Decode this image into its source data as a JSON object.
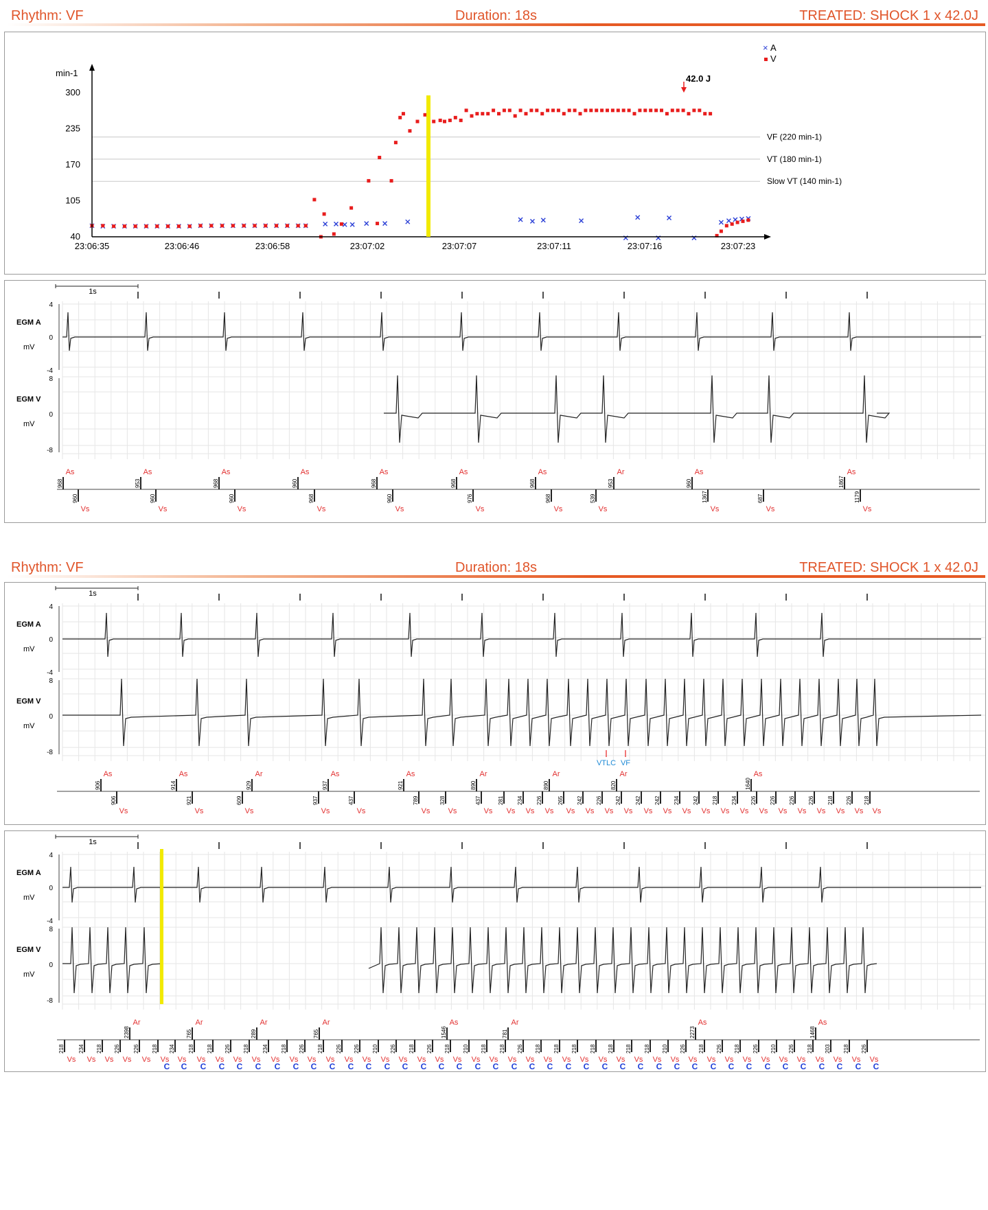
{
  "header": {
    "rhythm": "Rhythm: VF",
    "duration": "Duration: 18s",
    "treated": "TREATED: SHOCK 1 x 42.0J"
  },
  "colors": {
    "orange": "#e0552a",
    "atrial": "#2a3fd6",
    "ventricular": "#e81d1d",
    "marker": "#e23030",
    "cmark": "#1f3fd8",
    "highlight": "#f2ea00"
  },
  "trend": {
    "ylabel": "min-1",
    "ytick_labels": [
      "40",
      "105",
      "170",
      "235",
      "300"
    ],
    "xtick_labels": [
      "23:06:35",
      "23:06:46",
      "23:06:58",
      "23:07:02",
      "23:07:07",
      "23:07:11",
      "23:07:16",
      "23:07:23"
    ],
    "legend": {
      "a": "A",
      "v": "V"
    },
    "shock": "42.0 J",
    "zones": [
      "VF (220 min-1)",
      "VT (180 min-1)",
      "Slow VT (140 min-1)"
    ]
  },
  "chart_data": {
    "type": "scatter",
    "title": "",
    "ylabel": "min-1",
    "ylim": [
      40,
      300
    ],
    "yticks": [
      40,
      105,
      170,
      235,
      300
    ],
    "x_index": [
      0,
      60
    ],
    "thresholds": [
      220,
      180,
      140
    ],
    "series": [
      {
        "name": "A",
        "marker": "x",
        "points": [
          [
            0,
            60
          ],
          [
            1,
            59
          ],
          [
            2,
            59
          ],
          [
            3,
            59
          ],
          [
            4,
            59
          ],
          [
            5,
            59
          ],
          [
            6,
            59
          ],
          [
            7,
            59
          ],
          [
            8,
            59
          ],
          [
            9,
            59
          ],
          [
            10,
            60
          ],
          [
            11,
            60
          ],
          [
            12,
            60
          ],
          [
            13,
            60
          ],
          [
            14,
            60
          ],
          [
            15,
            60
          ],
          [
            16,
            60
          ],
          [
            17,
            60
          ],
          [
            18,
            60
          ],
          [
            19,
            60
          ],
          [
            19.7,
            60
          ],
          [
            21.5,
            63
          ],
          [
            22.5,
            63
          ],
          [
            23.3,
            62
          ],
          [
            24,
            62
          ],
          [
            25.3,
            64
          ],
          [
            27,
            64
          ],
          [
            29.1,
            67
          ],
          [
            39.5,
            71
          ],
          [
            40.6,
            68
          ],
          [
            41.6,
            70
          ],
          [
            45.1,
            69
          ],
          [
            49.2,
            38
          ],
          [
            50.3,
            75
          ],
          [
            52.2,
            38
          ],
          [
            53.2,
            74
          ],
          [
            55.5,
            38
          ],
          [
            58,
            66
          ],
          [
            58.7,
            69
          ],
          [
            59.3,
            71
          ],
          [
            59.9,
            72
          ],
          [
            60.5,
            73
          ]
        ]
      },
      {
        "name": "V",
        "marker": "square",
        "points": [
          [
            0,
            60
          ],
          [
            1,
            60
          ],
          [
            2,
            59
          ],
          [
            3,
            59
          ],
          [
            4,
            59
          ],
          [
            5,
            59
          ],
          [
            6,
            59
          ],
          [
            7,
            59
          ],
          [
            8,
            59
          ],
          [
            9,
            59
          ],
          [
            10,
            60
          ],
          [
            11,
            60
          ],
          [
            12,
            60
          ],
          [
            13,
            60
          ],
          [
            14,
            60
          ],
          [
            15,
            60
          ],
          [
            16,
            60
          ],
          [
            17,
            60
          ],
          [
            18,
            60
          ],
          [
            19,
            60
          ],
          [
            19.7,
            60
          ],
          [
            20.5,
            107
          ],
          [
            21.1,
            40
          ],
          [
            21.4,
            81
          ],
          [
            22.3,
            45
          ],
          [
            23,
            63
          ],
          [
            23.9,
            92
          ],
          [
            25.5,
            141
          ],
          [
            26.3,
            64
          ],
          [
            26.5,
            183
          ],
          [
            27.6,
            141
          ],
          [
            28,
            210
          ],
          [
            28.4,
            255
          ],
          [
            28.7,
            262
          ],
          [
            29.3,
            231
          ],
          [
            30,
            248
          ],
          [
            30.7,
            260
          ],
          [
            31.5,
            248
          ],
          [
            32.1,
            250
          ],
          [
            32.5,
            248
          ],
          [
            33,
            250
          ],
          [
            33.5,
            255
          ],
          [
            34,
            250
          ],
          [
            34.5,
            268
          ],
          [
            35,
            258
          ],
          [
            35.5,
            262
          ],
          [
            36,
            262
          ],
          [
            36.5,
            262
          ],
          [
            37,
            268
          ],
          [
            37.5,
            262
          ],
          [
            38,
            268
          ],
          [
            38.5,
            268
          ],
          [
            39,
            258
          ],
          [
            39.5,
            268
          ],
          [
            40,
            262
          ],
          [
            40.5,
            268
          ],
          [
            41,
            268
          ],
          [
            41.5,
            262
          ],
          [
            42,
            268
          ],
          [
            42.5,
            268
          ],
          [
            43,
            268
          ],
          [
            43.5,
            262
          ],
          [
            44,
            268
          ],
          [
            44.5,
            268
          ],
          [
            45,
            262
          ],
          [
            45.5,
            268
          ],
          [
            46,
            268
          ],
          [
            46.5,
            268
          ],
          [
            47,
            268
          ],
          [
            47.5,
            268
          ],
          [
            48,
            268
          ],
          [
            48.5,
            268
          ],
          [
            49,
            268
          ],
          [
            49.5,
            268
          ],
          [
            50,
            262
          ],
          [
            50.5,
            268
          ],
          [
            51,
            268
          ],
          [
            51.5,
            268
          ],
          [
            52,
            268
          ],
          [
            52.5,
            268
          ],
          [
            53,
            262
          ],
          [
            53.5,
            268
          ],
          [
            54,
            268
          ],
          [
            54.5,
            268
          ],
          [
            55,
            262
          ],
          [
            55.5,
            268
          ],
          [
            56,
            268
          ],
          [
            56.5,
            262
          ],
          [
            57,
            262
          ],
          [
            57.6,
            42
          ],
          [
            58,
            50
          ],
          [
            58.5,
            60
          ],
          [
            59,
            63
          ],
          [
            59.5,
            66
          ],
          [
            60,
            68
          ],
          [
            60.5,
            70
          ]
        ]
      }
    ],
    "annotations": [
      "42.0 J",
      "VF (220 min-1)",
      "VT (180 min-1)",
      "Slow VT (140 min-1)"
    ]
  },
  "egm": {
    "scale": "1s",
    "channel_a": "EGM A",
    "channel_v": "EGM V",
    "unit": "mV",
    "a_ticks": [
      "4",
      "0",
      "-4"
    ],
    "v_ticks": [
      "8",
      "0",
      "-8"
    ],
    "strip1_top": [
      {
        "lab": "As",
        "val": "968",
        "x": 95
      },
      {
        "lab": "As",
        "val": "953",
        "x": 208
      },
      {
        "lab": "As",
        "val": "968",
        "x": 322
      },
      {
        "lab": "As",
        "val": "960",
        "x": 437
      },
      {
        "lab": "As",
        "val": "968",
        "x": 552
      },
      {
        "lab": "As",
        "val": "968",
        "x": 668
      },
      {
        "lab": "As",
        "val": "968",
        "x": 783
      },
      {
        "lab": "Ar",
        "val": "953",
        "x": 897
      },
      {
        "lab": "As",
        "val": "960",
        "x": 1011
      },
      {
        "lab": "As",
        "val": "1867",
        "x": 1233
      }
    ],
    "strip1_bot": [
      {
        "lab": "Vs",
        "val": "960",
        "x": 117
      },
      {
        "lab": "Vs",
        "val": "960",
        "x": 230
      },
      {
        "lab": "Vs",
        "val": "960",
        "x": 345
      },
      {
        "lab": "Vs",
        "val": "968",
        "x": 461
      },
      {
        "lab": "Vs",
        "val": "960",
        "x": 575
      },
      {
        "lab": "Vs",
        "val": "976",
        "x": 692
      },
      {
        "lab": "Vs",
        "val": "968",
        "x": 806
      },
      {
        "lab": "Vs",
        "val": "539",
        "x": 871
      },
      {
        "lab": "Vs",
        "val": "1367",
        "x": 1034
      },
      {
        "lab": "Vs",
        "val": "687",
        "x": 1115
      },
      {
        "lab": "Vs",
        "val": "1179",
        "x": 1256
      }
    ],
    "strip2_top": [
      {
        "lab": "As",
        "val": "906",
        "x": 150
      },
      {
        "lab": "As",
        "val": "914",
        "x": 260
      },
      {
        "lab": "Ar",
        "val": "929",
        "x": 370
      },
      {
        "lab": "As",
        "val": "937",
        "x": 481
      },
      {
        "lab": "As",
        "val": "921",
        "x": 591
      },
      {
        "lab": "Ar",
        "val": "890",
        "x": 697
      },
      {
        "lab": "Ar",
        "val": "890",
        "x": 803
      },
      {
        "lab": "Ar",
        "val": "820",
        "x": 901
      },
      {
        "lab": "As",
        "val": "1640",
        "x": 1097
      }
    ],
    "strip2_bot": [
      {
        "lab": "Vs",
        "val": "906",
        "x": 173
      },
      {
        "lab": "Vs",
        "val": "921",
        "x": 283
      },
      {
        "lab": "Vs",
        "val": "609",
        "x": 356
      },
      {
        "lab": "Vs",
        "val": "937",
        "x": 467
      },
      {
        "lab": "Vs",
        "val": "437",
        "x": 519
      },
      {
        "lab": "Vs",
        "val": "789",
        "x": 613
      },
      {
        "lab": "Vs",
        "val": "328",
        "x": 652
      },
      {
        "lab": "Vs",
        "val": "437",
        "x": 704
      },
      {
        "lab": "Vs",
        "val": "281",
        "x": 737
      },
      {
        "lab": "Vs",
        "val": "234",
        "x": 765
      },
      {
        "lab": "Vs",
        "val": "226",
        "x": 793
      },
      {
        "lab": "Vs",
        "val": "265",
        "x": 824
      },
      {
        "lab": "Vs",
        "val": "242",
        "x": 852
      },
      {
        "lab": "Vs",
        "val": "226",
        "x": 880
      },
      {
        "lab": "Vs",
        "val": "242",
        "x": 908
      },
      {
        "lab": "Vs",
        "val": "242",
        "x": 937
      },
      {
        "lab": "Vs",
        "val": "242",
        "x": 965
      },
      {
        "lab": "Vs",
        "val": "234",
        "x": 993
      },
      {
        "lab": "Vs",
        "val": "242",
        "x": 1021
      },
      {
        "lab": "Vs",
        "val": "218",
        "x": 1049
      },
      {
        "lab": "Vs",
        "val": "234",
        "x": 1077
      },
      {
        "lab": "Vs",
        "val": "226",
        "x": 1105
      },
      {
        "lab": "Vs",
        "val": "226",
        "x": 1133
      },
      {
        "lab": "Vs",
        "val": "226",
        "x": 1161
      },
      {
        "lab": "Vs",
        "val": "226",
        "x": 1189
      },
      {
        "lab": "Vs",
        "val": "218",
        "x": 1217
      },
      {
        "lab": "Vs",
        "val": "226",
        "x": 1244
      },
      {
        "lab": "Vs",
        "val": "218",
        "x": 1270
      }
    ],
    "strip3_top": [
      {
        "lab": "Ar",
        "val": "2398",
        "x": 192
      },
      {
        "lab": "Ar",
        "val": "765",
        "x": 283
      },
      {
        "lab": "Ar",
        "val": "289",
        "x": 377
      },
      {
        "lab": "Ar",
        "val": "765",
        "x": 468
      },
      {
        "lab": "As",
        "val": "1546",
        "x": 654
      },
      {
        "lab": "Ar",
        "val": "781",
        "x": 743
      },
      {
        "lab": "As",
        "val": "2273",
        "x": 1016
      },
      {
        "lab": "As",
        "val": "1468",
        "x": 1191
      }
    ],
    "strip3_bot": [
      {
        "lab": "Vs",
        "val": "218",
        "x": 97,
        "c": false
      },
      {
        "lab": "Vs",
        "val": "234",
        "x": 126,
        "c": false
      },
      {
        "lab": "Vs",
        "val": "218",
        "x": 152,
        "c": false
      },
      {
        "lab": "Vs",
        "val": "226",
        "x": 178,
        "c": false
      },
      {
        "lab": "Vs",
        "val": "226",
        "x": 206,
        "c": false
      },
      {
        "lab": "Vs",
        "val": "218",
        "x": 233,
        "c": true
      },
      {
        "lab": "Vs",
        "val": "234",
        "x": 258,
        "c": true
      },
      {
        "lab": "Vs",
        "val": "218",
        "x": 286,
        "c": true
      },
      {
        "lab": "Vs",
        "val": "218",
        "x": 313,
        "c": true
      },
      {
        "lab": "Vs",
        "val": "226",
        "x": 339,
        "c": true
      },
      {
        "lab": "Vs",
        "val": "218",
        "x": 366,
        "c": true
      },
      {
        "lab": "Vs",
        "val": "234",
        "x": 394,
        "c": true
      },
      {
        "lab": "Vs",
        "val": "218",
        "x": 421,
        "c": true
      },
      {
        "lab": "Vs",
        "val": "226",
        "x": 447,
        "c": true
      },
      {
        "lab": "Vs",
        "val": "218",
        "x": 474,
        "c": true
      },
      {
        "lab": "Vs",
        "val": "226",
        "x": 501,
        "c": true
      },
      {
        "lab": "Vs",
        "val": "226",
        "x": 527,
        "c": true
      },
      {
        "lab": "Vs",
        "val": "210",
        "x": 554,
        "c": true
      },
      {
        "lab": "Vs",
        "val": "226",
        "x": 580,
        "c": true
      },
      {
        "lab": "Vs",
        "val": "218",
        "x": 607,
        "c": true
      },
      {
        "lab": "Vs",
        "val": "226",
        "x": 633,
        "c": true
      },
      {
        "lab": "Vs",
        "val": "218",
        "x": 659,
        "c": true
      },
      {
        "lab": "Vs",
        "val": "210",
        "x": 686,
        "c": true
      },
      {
        "lab": "Vs",
        "val": "218",
        "x": 712,
        "c": true
      },
      {
        "lab": "Vs",
        "val": "218",
        "x": 739,
        "c": true
      },
      {
        "lab": "Vs",
        "val": "226",
        "x": 765,
        "c": true
      },
      {
        "lab": "Vs",
        "val": "218",
        "x": 791,
        "c": true
      },
      {
        "lab": "Vs",
        "val": "218",
        "x": 818,
        "c": true
      },
      {
        "lab": "Vs",
        "val": "218",
        "x": 844,
        "c": true
      },
      {
        "lab": "Vs",
        "val": "218",
        "x": 871,
        "c": true
      },
      {
        "lab": "Vs",
        "val": "218",
        "x": 897,
        "c": true
      },
      {
        "lab": "Vs",
        "val": "218",
        "x": 923,
        "c": true
      },
      {
        "lab": "Vs",
        "val": "218",
        "x": 950,
        "c": true
      },
      {
        "lab": "Vs",
        "val": "210",
        "x": 976,
        "c": true
      },
      {
        "lab": "Vs",
        "val": "226",
        "x": 1002,
        "c": true
      },
      {
        "lab": "Vs",
        "val": "218",
        "x": 1029,
        "c": true
      },
      {
        "lab": "Vs",
        "val": "226",
        "x": 1055,
        "c": true
      },
      {
        "lab": "Vs",
        "val": "218",
        "x": 1081,
        "c": true
      },
      {
        "lab": "Vs",
        "val": "226",
        "x": 1108,
        "c": true
      },
      {
        "lab": "Vs",
        "val": "210",
        "x": 1134,
        "c": true
      },
      {
        "lab": "Vs",
        "val": "226",
        "x": 1160,
        "c": true
      },
      {
        "lab": "Vs",
        "val": "218",
        "x": 1187,
        "c": true
      },
      {
        "lab": "Vs",
        "val": "203",
        "x": 1213,
        "c": true
      },
      {
        "lab": "Vs",
        "val": "218",
        "x": 1240,
        "c": true
      },
      {
        "lab": "Vs",
        "val": "226",
        "x": 1266,
        "c": true
      }
    ],
    "detect_vtlc": "VTLC",
    "detect_vf": "VF",
    "c_label": "C"
  }
}
